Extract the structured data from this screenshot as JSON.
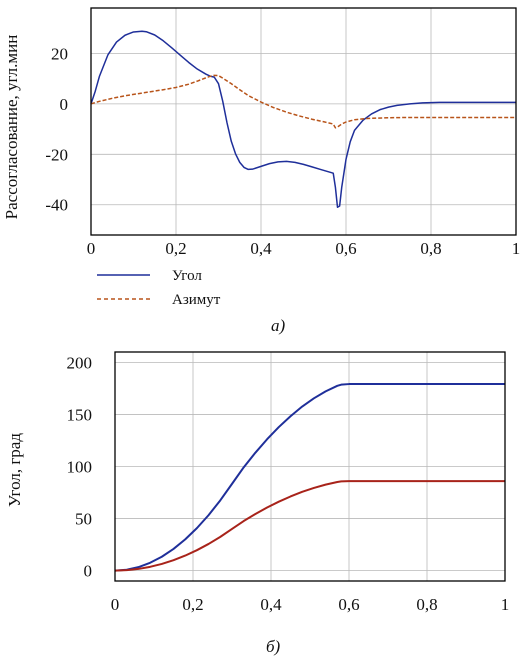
{
  "chart_data": [
    {
      "type": "line",
      "caption": "а)",
      "ylabel": "Рассогласование, угл.мин",
      "xlim": [
        0,
        1
      ],
      "ylim": [
        -52,
        38
      ],
      "xticks": [
        0,
        0.2,
        0.4,
        0.6,
        0.8,
        1
      ],
      "xtick_labels": [
        "0",
        "0,2",
        "0,4",
        "0,6",
        "0,8",
        "1"
      ],
      "yticks": [
        20,
        0,
        -20,
        -40
      ],
      "ytick_labels": [
        "20",
        "0",
        "-20",
        "-40"
      ],
      "grid": true,
      "legend": "bottom-left",
      "series": [
        {
          "name": "Угол",
          "color": "#1f2f9a",
          "dash": "solid",
          "x": [
            0,
            0.01,
            0.02,
            0.04,
            0.06,
            0.08,
            0.1,
            0.12,
            0.13,
            0.15,
            0.17,
            0.19,
            0.21,
            0.23,
            0.25,
            0.27,
            0.28,
            0.29,
            0.3,
            0.31,
            0.32,
            0.33,
            0.34,
            0.35,
            0.36,
            0.37,
            0.38,
            0.4,
            0.42,
            0.44,
            0.46,
            0.48,
            0.5,
            0.52,
            0.54,
            0.56,
            0.57,
            0.575,
            0.58,
            0.585,
            0.59,
            0.6,
            0.61,
            0.62,
            0.64,
            0.66,
            0.68,
            0.7,
            0.72,
            0.75,
            0.78,
            0.8,
            0.82,
            0.85,
            0.9,
            0.95,
            1.0
          ],
          "y": [
            0,
            5,
            11,
            19.5,
            24.5,
            27.2,
            28.5,
            28.8,
            28.6,
            27.3,
            25.0,
            22.2,
            19.3,
            16.4,
            13.8,
            11.8,
            11.0,
            10.6,
            8.0,
            1.0,
            -7.5,
            -14.8,
            -19.8,
            -23.2,
            -25.2,
            -26.0,
            -25.9,
            -24.8,
            -23.7,
            -23.0,
            -22.8,
            -23.2,
            -24.0,
            -25.0,
            -26.0,
            -27.0,
            -27.5,
            -33.0,
            -41.0,
            -40.5,
            -33.0,
            -22.0,
            -15.0,
            -10.5,
            -6.5,
            -4.0,
            -2.3,
            -1.3,
            -0.6,
            0.0,
            0.4,
            0.5,
            0.6,
            0.6,
            0.6,
            0.6,
            0.6
          ]
        },
        {
          "name": "Азимут",
          "color": "#b8541a",
          "dash": "dashed",
          "x": [
            0,
            0.02,
            0.05,
            0.08,
            0.11,
            0.14,
            0.17,
            0.2,
            0.23,
            0.25,
            0.27,
            0.28,
            0.29,
            0.3,
            0.31,
            0.33,
            0.35,
            0.37,
            0.4,
            0.43,
            0.46,
            0.49,
            0.52,
            0.55,
            0.57,
            0.575,
            0.58,
            0.585,
            0.59,
            0.6,
            0.62,
            0.65,
            0.7,
            0.75,
            0.8,
            0.85,
            0.9,
            0.95,
            1.0
          ],
          "y": [
            0,
            1.0,
            2.2,
            3.2,
            4.0,
            4.8,
            5.6,
            6.5,
            7.8,
            9.0,
            10.3,
            10.9,
            11.3,
            11.2,
            10.2,
            8.0,
            5.6,
            3.3,
            0.7,
            -1.5,
            -3.3,
            -4.8,
            -6.1,
            -7.2,
            -8.0,
            -9.5,
            -9.2,
            -8.6,
            -8.0,
            -7.2,
            -6.3,
            -5.8,
            -5.5,
            -5.4,
            -5.4,
            -5.4,
            -5.4,
            -5.4,
            -5.4
          ]
        }
      ]
    },
    {
      "type": "line",
      "caption": "б)",
      "ylabel": "Угол, град",
      "xlim": [
        0,
        1
      ],
      "ylim": [
        -10,
        210
      ],
      "xticks": [
        0,
        0.2,
        0.4,
        0.6,
        0.8,
        1
      ],
      "xtick_labels": [
        "0",
        "0,2",
        "0,4",
        "0,6",
        "0,8",
        "1"
      ],
      "yticks": [
        200,
        150,
        100,
        50,
        0
      ],
      "ytick_labels": [
        "200",
        "150",
        "100",
        "50",
        "0"
      ],
      "grid": true,
      "series": [
        {
          "color": "#1f2f9a",
          "dash": "solid",
          "x": [
            0,
            0.03,
            0.06,
            0.09,
            0.12,
            0.15,
            0.18,
            0.21,
            0.24,
            0.27,
            0.3,
            0.33,
            0.36,
            0.39,
            0.42,
            0.45,
            0.48,
            0.51,
            0.54,
            0.57,
            0.58,
            0.6,
            0.7,
            0.8,
            0.9,
            1.0
          ],
          "y": [
            0,
            0.8,
            3.3,
            7.5,
            13.3,
            20.8,
            30.0,
            40.8,
            53.3,
            67.5,
            83.3,
            99.2,
            113.3,
            126.2,
            137.9,
            148.3,
            157.6,
            165.5,
            172.2,
            177.5,
            178.6,
            179.2,
            179.3,
            179.3,
            179.3,
            179.3
          ]
        },
        {
          "color": "#a8231a",
          "dash": "solid",
          "x": [
            0,
            0.03,
            0.06,
            0.09,
            0.12,
            0.15,
            0.18,
            0.21,
            0.24,
            0.27,
            0.3,
            0.33,
            0.36,
            0.39,
            0.42,
            0.45,
            0.48,
            0.51,
            0.54,
            0.57,
            0.58,
            0.6,
            0.7,
            0.8,
            0.9,
            1.0
          ],
          "y": [
            0,
            0.4,
            1.6,
            3.6,
            6.4,
            10.0,
            14.4,
            19.6,
            25.6,
            32.4,
            40.0,
            47.6,
            54.4,
            60.6,
            66.2,
            71.2,
            75.7,
            79.4,
            82.6,
            85.1,
            85.7,
            86.0,
            86.0,
            86.0,
            86.0,
            86.0
          ]
        }
      ]
    }
  ]
}
